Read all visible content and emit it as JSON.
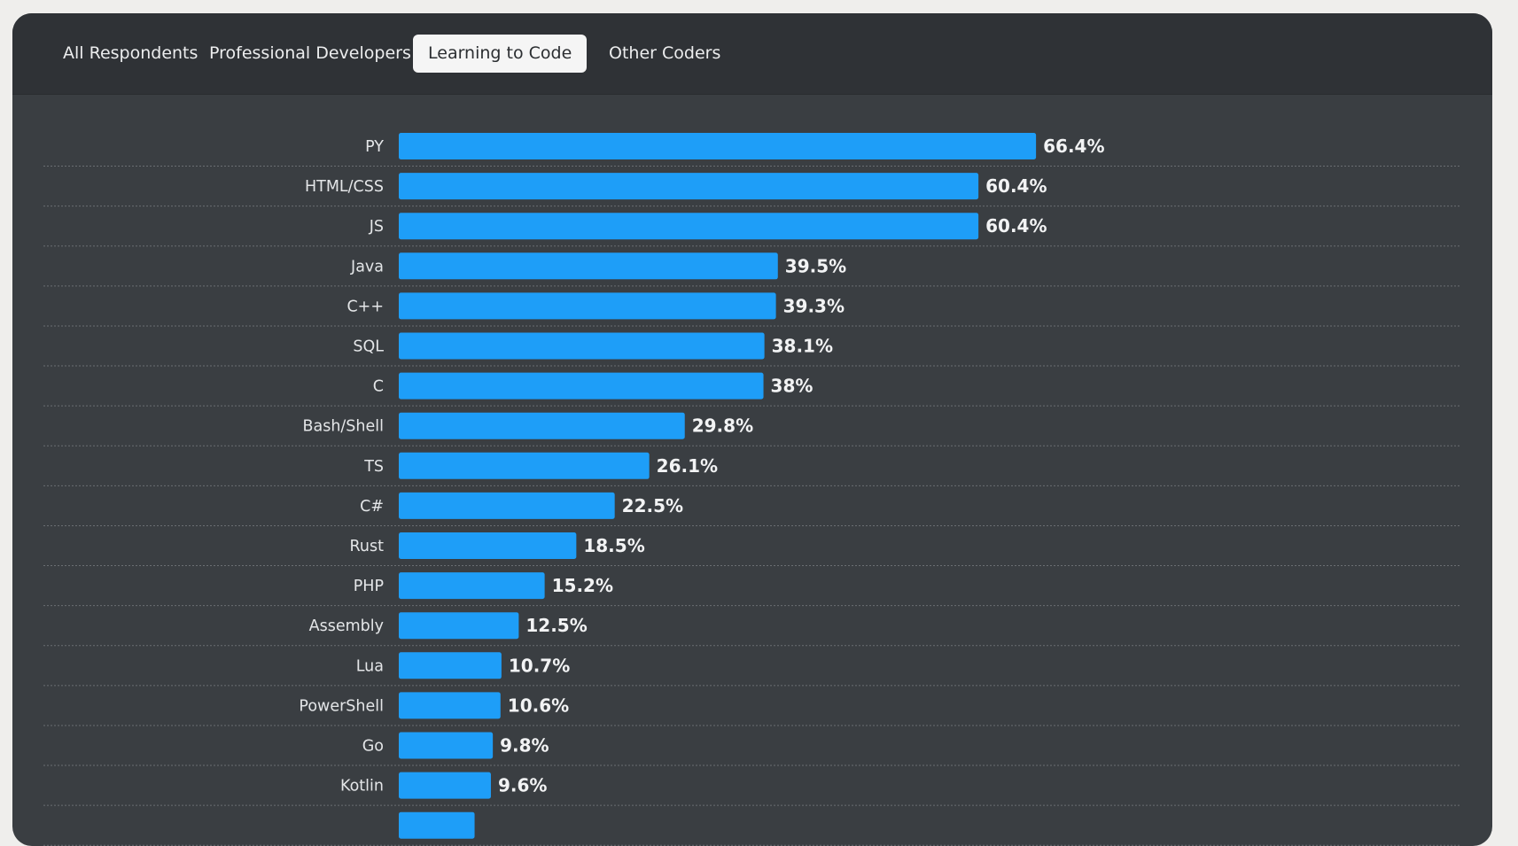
{
  "tabs": [
    {
      "label": "All Respondents",
      "active": false
    },
    {
      "label": "Professional Developers",
      "active": false
    },
    {
      "label": "Learning to Code",
      "active": true
    },
    {
      "label": "Other Coders",
      "active": false
    }
  ],
  "colors": {
    "bar": "#1e9ef8",
    "panel_background": "#3a3e42",
    "tabbar_background": "#2f3236",
    "active_tab_background": "#f5f5f5"
  },
  "chart_data": {
    "type": "bar",
    "orientation": "horizontal",
    "categories": [
      "PY",
      "HTML/CSS",
      "JS",
      "Java",
      "C++",
      "SQL",
      "C",
      "Bash/Shell",
      "TS",
      "C#",
      "Rust",
      "PHP",
      "Assembly",
      "Lua",
      "PowerShell",
      "Go",
      "Kotlin",
      ""
    ],
    "values": [
      66.4,
      60.4,
      60.4,
      39.5,
      39.3,
      38.1,
      38,
      29.8,
      26.1,
      22.5,
      18.5,
      15.2,
      12.5,
      10.7,
      10.6,
      9.8,
      9.6,
      7.9
    ],
    "value_labels": [
      "66.4%",
      "60.4%",
      "60.4%",
      "39.5%",
      "39.3%",
      "38.1%",
      "38%",
      "29.8%",
      "26.1%",
      "22.5%",
      "18.5%",
      "15.2%",
      "12.5%",
      "10.7%",
      "10.6%",
      "9.8%",
      "9.6%",
      ""
    ],
    "unit": "%",
    "xlim": [
      0,
      100
    ]
  }
}
